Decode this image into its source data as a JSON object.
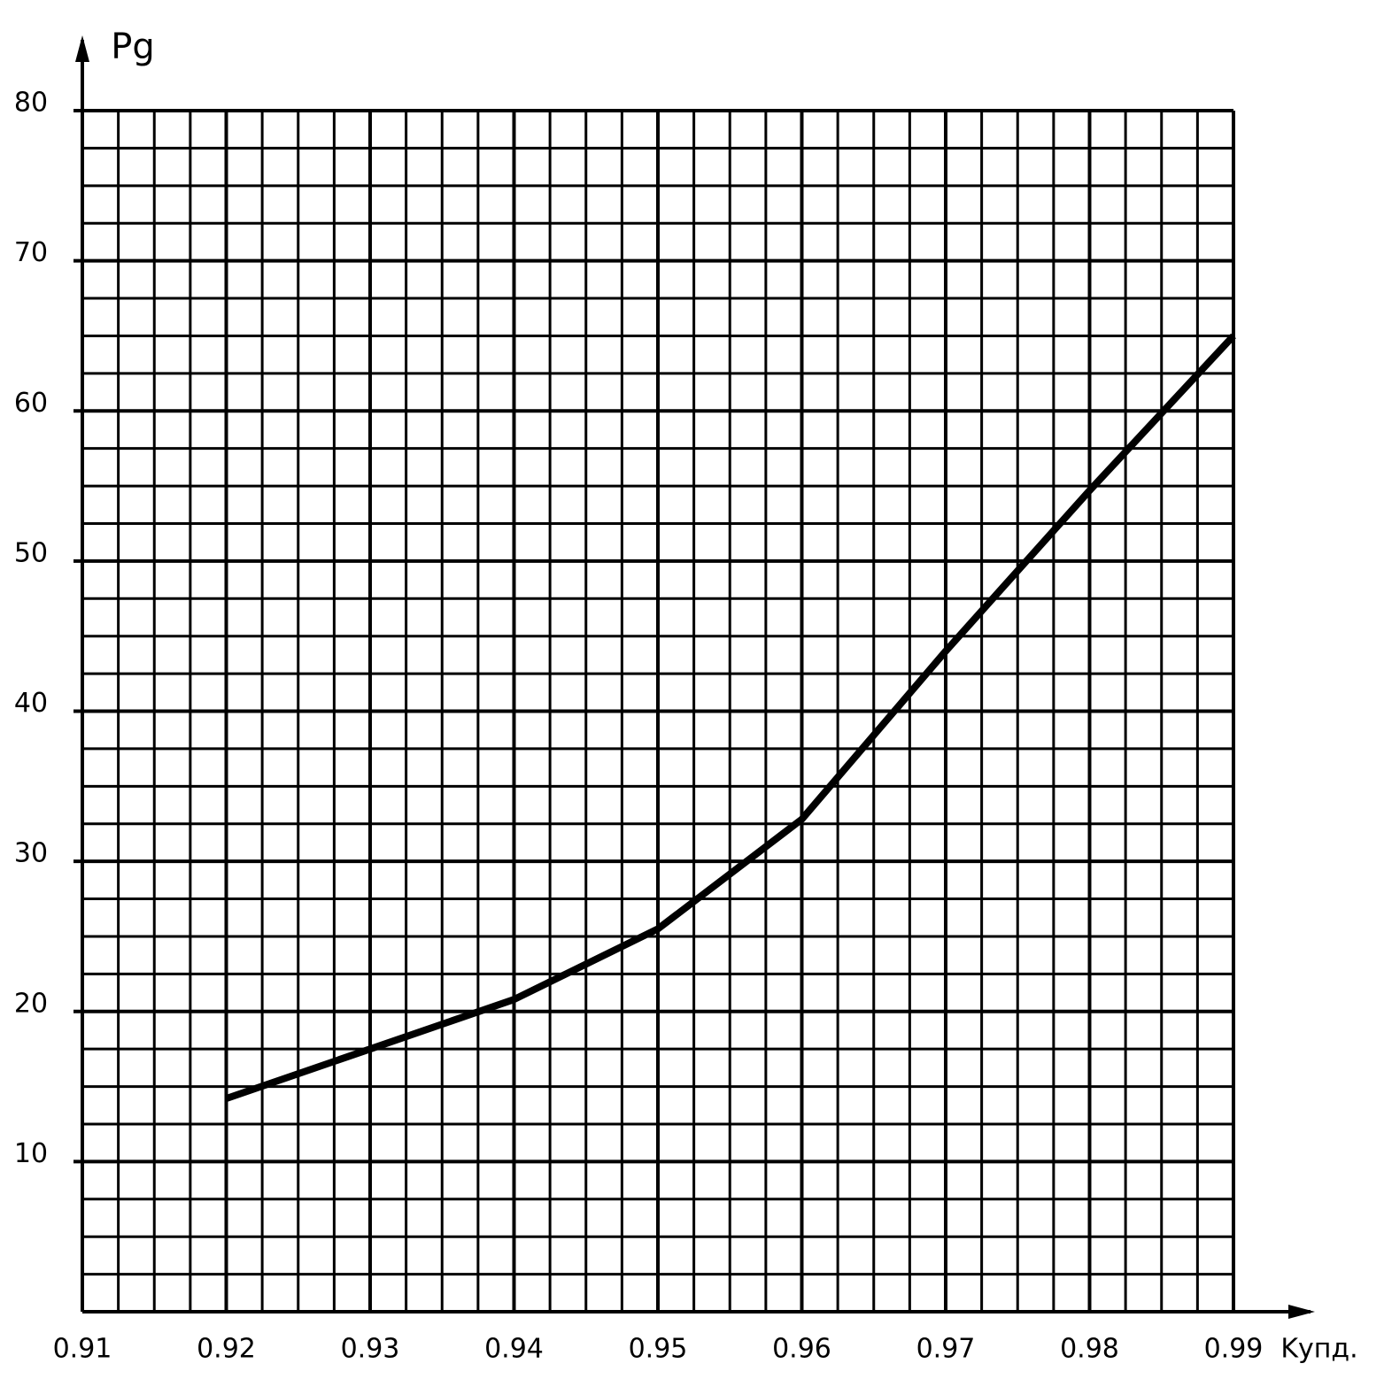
{
  "chart_data": {
    "type": "line",
    "x_label": "Kупд.",
    "y_label": "Pg",
    "x": [
      0.92,
      0.93,
      0.94,
      0.95,
      0.96,
      0.97,
      0.98,
      0.99
    ],
    "series": [
      {
        "color": "#000000",
        "values": [
          14.2,
          17.5,
          20.8,
          25.5,
          32.8,
          44,
          54.7,
          65
        ]
      }
    ],
    "xlim": [
      0.91,
      0.99
    ],
    "xticks": [
      0.91,
      0.92,
      0.93,
      0.94,
      0.95,
      0.96,
      0.97,
      0.98,
      0.99
    ],
    "ylim": [
      0,
      80
    ],
    "yticks": [
      10,
      20,
      30,
      40,
      50,
      60,
      70,
      80
    ],
    "grid": true,
    "minor_grid_divisions": 4
  }
}
